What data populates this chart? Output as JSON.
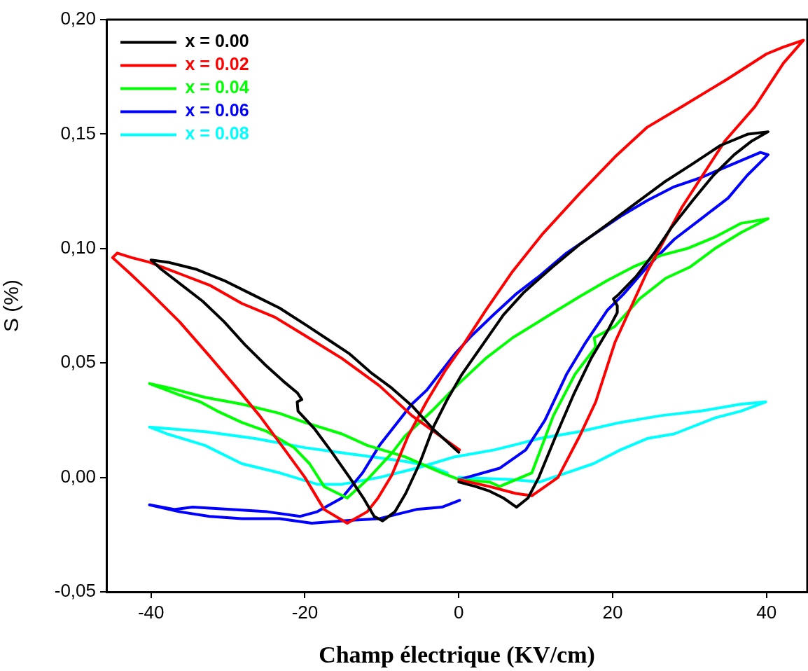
{
  "chart_data": {
    "type": "line",
    "xlabel": "Champ électrique (KV/cm)",
    "ylabel": "S (%)",
    "xlim": [
      -45.8,
      45.3
    ],
    "ylim": [
      -0.05,
      0.2
    ],
    "xticks": [
      -40,
      -20,
      0,
      20,
      40
    ],
    "yticks": [
      {
        "value": -0.05,
        "label": "-0,05"
      },
      {
        "value": 0,
        "label": "0,00"
      },
      {
        "value": 0.05,
        "label": "0,05"
      },
      {
        "value": 0.1,
        "label": "0,10"
      },
      {
        "value": 0.15,
        "label": "0,15"
      },
      {
        "value": 0.2,
        "label": "0,20"
      }
    ],
    "legend": "top left",
    "marker": "none",
    "line_style": "solid",
    "series": [
      {
        "name": "x = 0.00",
        "color": "#000000",
        "x": [
          0,
          2.2,
          4.0,
          5.8,
          7.5,
          9.0,
          10.4,
          12.6,
          14.9,
          17.2,
          19.5,
          20.6,
          20.6,
          20.1,
          20.8,
          23.1,
          25.4,
          27.6,
          30.4,
          33.1,
          35.8,
          38.1,
          40.2,
          37.6,
          34.0,
          30.4,
          26.7,
          23.1,
          19.5,
          15.8,
          12.2,
          8.5,
          5.8,
          3.1,
          0.4,
          -1.5,
          -3.3,
          -5.1,
          -6.9,
          -8.3,
          -9.9,
          -11.0,
          -12.4,
          -14.2,
          -16.5,
          -18.7,
          -20.9,
          -21.0,
          -20.4,
          -21.0,
          -22.8,
          -25.1,
          -27.8,
          -30.5,
          -33.3,
          -36.0,
          -38.7,
          -40.0,
          -37.8,
          -34.2,
          -30.5,
          -26.9,
          -23.3,
          -19.6,
          -16.9,
          -14.2,
          -11.5,
          -8.7,
          -6.0,
          -3.3,
          0
        ],
        "values": [
          -0.002,
          -0.004,
          -0.006,
          -0.009,
          -0.013,
          -0.009,
          0.0,
          0.018,
          0.036,
          0.052,
          0.065,
          0.072,
          0.075,
          0.078,
          0.08,
          0.088,
          0.098,
          0.109,
          0.121,
          0.132,
          0.141,
          0.147,
          0.151,
          0.15,
          0.145,
          0.137,
          0.129,
          0.12,
          0.111,
          0.102,
          0.092,
          0.081,
          0.071,
          0.058,
          0.045,
          0.034,
          0.022,
          0.006,
          -0.007,
          -0.015,
          -0.019,
          -0.017,
          -0.009,
          0.0,
          0.011,
          0.021,
          0.029,
          0.033,
          0.034,
          0.037,
          0.042,
          0.049,
          0.058,
          0.068,
          0.077,
          0.084,
          0.091,
          0.095,
          0.094,
          0.091,
          0.086,
          0.08,
          0.074,
          0.066,
          0.06,
          0.054,
          0.046,
          0.039,
          0.031,
          0.021,
          0.011
        ]
      },
      {
        "name": "x = 0.02",
        "color": "#ff0000",
        "x": [
          0,
          4.0,
          7.4,
          9.5,
          10.8,
          12.9,
          15.7,
          17.8,
          20.3,
          24.5,
          29.0,
          34.6,
          38.5,
          42.2,
          44.8,
          42.2,
          40.0,
          34.9,
          29.0,
          24.5,
          20.3,
          15.7,
          10.8,
          7.0,
          3.5,
          0.4,
          -1.7,
          -4.2,
          -6.6,
          -8.7,
          -10.5,
          -11.9,
          -14.5,
          -17.5,
          -20.0,
          -22.6,
          -25.9,
          -29.1,
          -32.4,
          -36.3,
          -40.2,
          -42.7,
          -45.0,
          -44.4,
          -42.5,
          -40.2,
          -36.3,
          -32.4,
          -28.2,
          -23.9,
          -20.0,
          -15.2,
          -10.3,
          -6.1,
          0.1
        ],
        "values": [
          -0.001,
          -0.004,
          -0.007,
          -0.008,
          -0.005,
          0.0,
          0.018,
          0.033,
          0.059,
          0.09,
          0.118,
          0.147,
          0.162,
          0.181,
          0.191,
          0.188,
          0.185,
          0.174,
          0.162,
          0.153,
          0.14,
          0.124,
          0.106,
          0.09,
          0.073,
          0.057,
          0.047,
          0.033,
          0.018,
          0.001,
          -0.009,
          -0.015,
          -0.02,
          -0.014,
          0.0,
          0.012,
          0.027,
          0.04,
          0.053,
          0.068,
          0.081,
          0.089,
          0.096,
          0.098,
          0.096,
          0.094,
          0.089,
          0.084,
          0.076,
          0.07,
          0.062,
          0.052,
          0.04,
          0.027,
          0.012
        ]
      },
      {
        "name": "x = 0.04",
        "color": "#00ff00",
        "x": [
          0,
          4.0,
          5.3,
          9.5,
          12.3,
          15.1,
          17.8,
          17.6,
          20.3,
          23.5,
          26.9,
          30.1,
          33.3,
          36.7,
          40.2,
          36.7,
          33.3,
          29.7,
          26.3,
          22.7,
          19.3,
          15.7,
          12.3,
          7.0,
          3.5,
          0,
          -3.5,
          -7.0,
          -8.6,
          -11.9,
          -14.5,
          -17.5,
          -19.4,
          -21.4,
          -24.9,
          -28.2,
          -31.4,
          -33.6,
          -36.3,
          -40.2,
          -37.5,
          -33.0,
          -28.2,
          -23.3,
          -20.0,
          -15.2,
          -11.9,
          -7.0,
          -2.2,
          0.1
        ],
        "values": [
          -0.001,
          -0.002,
          -0.004,
          0.002,
          0.027,
          0.045,
          0.057,
          0.061,
          0.066,
          0.078,
          0.087,
          0.092,
          0.1,
          0.107,
          0.113,
          0.111,
          0.105,
          0.1,
          0.097,
          0.092,
          0.086,
          0.079,
          0.072,
          0.061,
          0.052,
          0.041,
          0.029,
          0.018,
          0.011,
          -0.001,
          -0.009,
          -0.004,
          0.006,
          0.013,
          0.02,
          0.024,
          0.029,
          0.033,
          0.036,
          0.041,
          0.039,
          0.035,
          0.032,
          0.028,
          0.024,
          0.019,
          0.014,
          0.009,
          0.002,
          -0.001
        ]
      },
      {
        "name": "x = 0.06",
        "color": "#0000ff",
        "x": [
          0,
          5.3,
          8.7,
          11.2,
          14.0,
          16.5,
          19.3,
          21.4,
          24.5,
          28.0,
          31.5,
          35.0,
          37.5,
          40.2,
          39.2,
          35.0,
          31.5,
          28.0,
          24.5,
          21.0,
          17.5,
          14.0,
          10.5,
          7.4,
          4.5,
          1.7,
          -0.5,
          -4.2,
          -6.1,
          -10.3,
          -12.5,
          -15.2,
          -18.4,
          -20.6,
          -24.9,
          -29.7,
          -34.6,
          -36.9,
          -40.2,
          -36.3,
          -32.4,
          -28.2,
          -23.3,
          -19.1,
          -15.2,
          -10.3,
          -5.5,
          -2.2,
          0.1
        ],
        "values": [
          -0.001,
          0.004,
          0.012,
          0.025,
          0.045,
          0.059,
          0.073,
          0.08,
          0.092,
          0.104,
          0.113,
          0.122,
          0.132,
          0.141,
          0.142,
          0.136,
          0.131,
          0.127,
          0.121,
          0.114,
          0.106,
          0.098,
          0.088,
          0.08,
          0.071,
          0.062,
          0.054,
          0.038,
          0.032,
          0.014,
          0.002,
          -0.009,
          -0.015,
          -0.017,
          -0.015,
          -0.014,
          -0.013,
          -0.014,
          -0.012,
          -0.015,
          -0.017,
          -0.018,
          -0.018,
          -0.02,
          -0.019,
          -0.018,
          -0.014,
          -0.013,
          -0.01
        ]
      },
      {
        "name": "x = 0.08",
        "color": "#00ffff",
        "x": [
          0,
          7.0,
          10.5,
          14.0,
          17.5,
          21.0,
          24.5,
          28.0,
          33.3,
          36.7,
          39.9,
          36.7,
          31.5,
          26.3,
          21.0,
          15.7,
          10.5,
          7.0,
          4.6,
          -0.5,
          -5.5,
          -10.3,
          -15.2,
          -18.4,
          -23.3,
          -28.2,
          -33.0,
          -37.9,
          -40.2,
          -33.0,
          -26.5,
          -20.0,
          -13.5,
          -7.0,
          -3.8,
          -1.5
        ],
        "values": [
          0.0,
          -0.001,
          -0.002,
          0.002,
          0.006,
          0.012,
          0.017,
          0.019,
          0.026,
          0.029,
          0.033,
          0.032,
          0.029,
          0.027,
          0.024,
          0.02,
          0.017,
          0.014,
          0.012,
          0.009,
          0.004,
          0.0,
          -0.003,
          -0.003,
          0.002,
          0.006,
          0.014,
          0.019,
          0.022,
          0.02,
          0.017,
          0.013,
          0.01,
          0.007,
          0.005,
          0.002
        ]
      }
    ]
  }
}
